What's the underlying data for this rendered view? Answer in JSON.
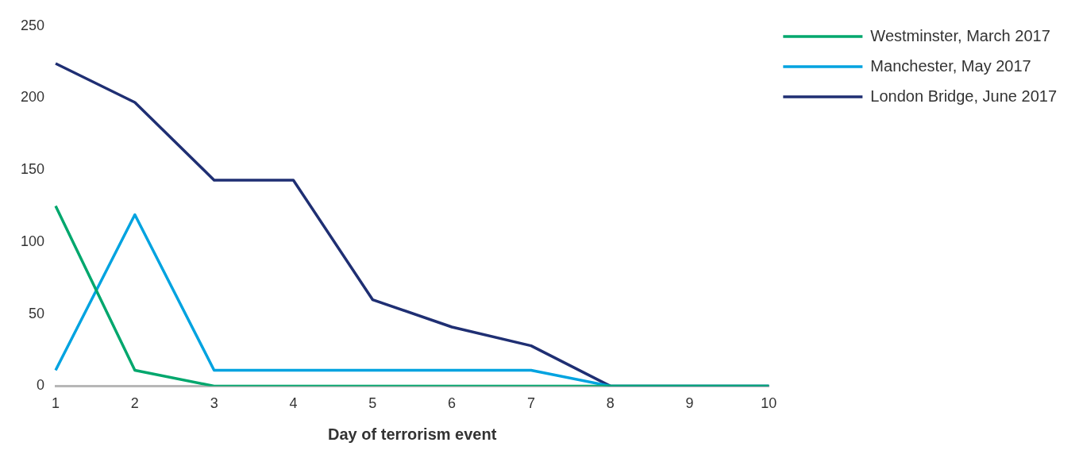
{
  "chart_data": {
    "type": "line",
    "xlabel": "Day of terrorism event",
    "categories": [
      "1",
      "2",
      "3",
      "4",
      "5",
      "6",
      "7",
      "8",
      "9",
      "10"
    ],
    "series": [
      {
        "name": "Westminster, March 2017",
        "color": "#00a76d",
        "values": [
          125,
          11,
          0,
          0,
          0,
          0,
          0,
          0,
          0,
          0
        ]
      },
      {
        "name": "Manchester, May 2017",
        "color": "#00a3e0",
        "values": [
          11,
          119,
          11,
          11,
          11,
          11,
          11,
          0,
          0,
          0
        ]
      },
      {
        "name": "London Bridge, June 2017",
        "color": "#1f2f73",
        "values": [
          224,
          197,
          143,
          143,
          60,
          41,
          28,
          0,
          0,
          0
        ]
      }
    ],
    "ylim": [
      0,
      250
    ],
    "yticks": [
      0,
      50,
      100,
      150,
      200,
      250
    ],
    "grid": false,
    "legend": "top right",
    "marker": "none",
    "line_style": "solid"
  }
}
